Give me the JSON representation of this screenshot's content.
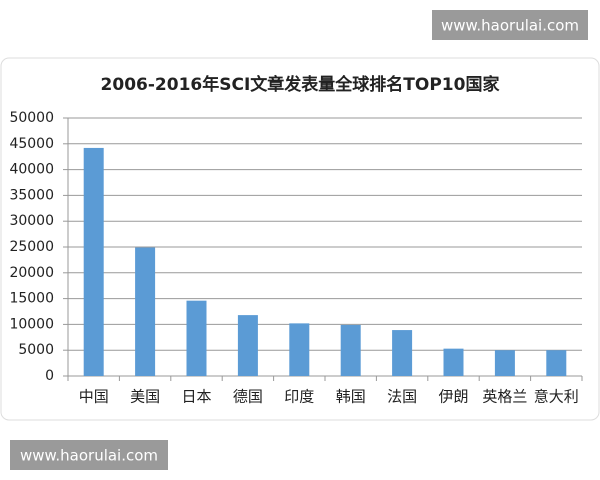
{
  "chart_data": {
    "type": "bar",
    "title": "2006-2016年SCI文章发表量全球排名TOP10国家",
    "categories": [
      "中国",
      "美国",
      "日本",
      "德国",
      "印度",
      "韩国",
      "法国",
      "伊朗",
      "英格兰",
      "意大利"
    ],
    "values": [
      44200,
      24900,
      14600,
      11800,
      10200,
      9900,
      8900,
      5300,
      5000,
      5000
    ],
    "color": "#5b9bd5",
    "ylim": [
      0,
      50000
    ],
    "yticks": [
      0,
      5000,
      10000,
      15000,
      20000,
      25000,
      30000,
      35000,
      40000,
      45000,
      50000
    ],
    "grid": true
  },
  "watermarks": [
    "www.haorulai.com",
    "www.haorulai.com"
  ]
}
